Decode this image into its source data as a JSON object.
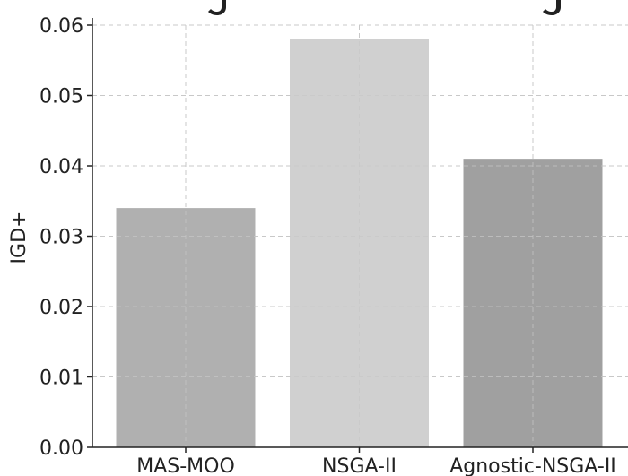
{
  "chart_data": {
    "type": "bar",
    "title": "",
    "xlabel": "",
    "ylabel": "IGD+",
    "categories": [
      "MAS-MOO",
      "NSGA-II",
      "Agnostic-NSGA-II"
    ],
    "values": [
      0.034,
      0.058,
      0.041
    ],
    "colors": [
      "#b0b0b0",
      "#d0d0d0",
      "#a0a0a0"
    ],
    "ylim": [
      0,
      0.06
    ],
    "yticks": [
      0.0,
      0.01,
      0.02,
      0.03,
      0.04,
      0.05,
      0.06
    ],
    "ytick_labels": [
      "0.00",
      "0.01",
      "0.02",
      "0.03",
      "0.04",
      "0.05",
      "0.06"
    ],
    "grid": true
  }
}
